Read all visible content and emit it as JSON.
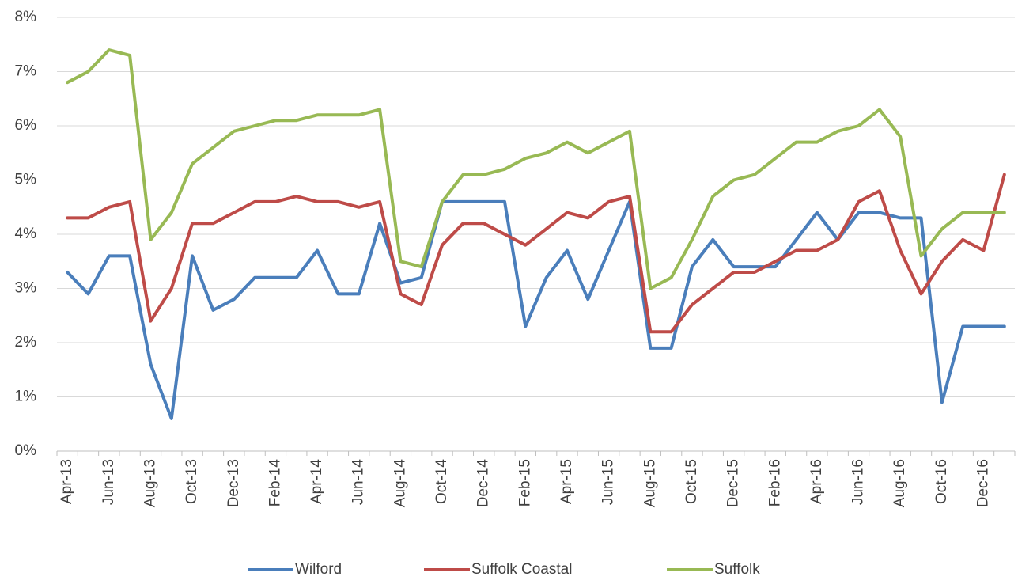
{
  "chart_data": {
    "type": "line",
    "categories": [
      "Apr-13",
      null,
      "Jun-13",
      null,
      "Aug-13",
      null,
      "Oct-13",
      null,
      "Dec-13",
      null,
      "Feb-14",
      null,
      "Apr-14",
      null,
      "Jun-14",
      null,
      "Aug-14",
      null,
      "Oct-14",
      null,
      "Dec-14",
      null,
      "Feb-15",
      null,
      "Apr-15",
      null,
      "Jun-15",
      null,
      "Aug-15",
      null,
      "Oct-15",
      null,
      "Dec-15",
      null,
      "Feb-16",
      null,
      "Apr-16",
      null,
      "Jun-16",
      null,
      "Aug-16",
      null,
      "Oct-16",
      null,
      "Dec-16",
      null
    ],
    "series": [
      {
        "name": "Wilford",
        "color": "#4a7ebb",
        "values": [
          3.3,
          2.9,
          3.6,
          3.6,
          1.6,
          0.6,
          3.6,
          2.6,
          2.8,
          3.2,
          3.2,
          3.2,
          3.7,
          2.9,
          2.9,
          4.2,
          3.1,
          3.2,
          4.6,
          4.6,
          4.6,
          4.6,
          2.3,
          3.2,
          3.7,
          2.8,
          3.7,
          4.6,
          1.9,
          1.9,
          3.4,
          3.9,
          3.4,
          3.4,
          3.4,
          3.9,
          4.4,
          3.9,
          4.4,
          4.4,
          4.3,
          4.3,
          0.9,
          2.3,
          2.3,
          2.3
        ]
      },
      {
        "name": "Suffolk Coastal",
        "color": "#be4b48",
        "values": [
          4.3,
          4.3,
          4.5,
          4.6,
          2.4,
          3.0,
          4.2,
          4.2,
          4.4,
          4.6,
          4.6,
          4.7,
          4.6,
          4.6,
          4.5,
          4.6,
          2.9,
          2.7,
          3.8,
          4.2,
          4.2,
          4.0,
          3.8,
          4.1,
          4.4,
          4.3,
          4.6,
          4.7,
          2.2,
          2.2,
          2.7,
          3.0,
          3.3,
          3.3,
          3.5,
          3.7,
          3.7,
          3.9,
          4.6,
          4.8,
          3.7,
          2.9,
          3.5,
          3.9,
          3.7,
          5.1
        ]
      },
      {
        "name": "Suffolk",
        "color": "#98b954",
        "values": [
          6.8,
          7.0,
          7.4,
          7.3,
          3.9,
          4.4,
          5.3,
          5.6,
          5.9,
          6.0,
          6.1,
          6.1,
          6.2,
          6.2,
          6.2,
          6.3,
          3.5,
          3.4,
          4.6,
          5.1,
          5.1,
          5.2,
          5.4,
          5.5,
          5.7,
          5.5,
          5.7,
          5.9,
          3.0,
          3.2,
          3.9,
          4.7,
          5.0,
          5.1,
          5.4,
          5.7,
          5.7,
          5.9,
          6.0,
          6.3,
          5.8,
          3.6,
          4.1,
          4.4,
          4.4,
          4.4
        ]
      }
    ],
    "ylim": [
      0,
      8
    ],
    "yticks": [
      {
        "value": 0,
        "label": "0%"
      },
      {
        "value": 1,
        "label": "1%"
      },
      {
        "value": 2,
        "label": "2%"
      },
      {
        "value": 3,
        "label": "3%"
      },
      {
        "value": 4,
        "label": "4%"
      },
      {
        "value": 5,
        "label": "5%"
      },
      {
        "value": 6,
        "label": "6%"
      },
      {
        "value": 7,
        "label": "7%"
      },
      {
        "value": 8,
        "label": "8%"
      }
    ],
    "grid": true,
    "legend": "bottom"
  }
}
